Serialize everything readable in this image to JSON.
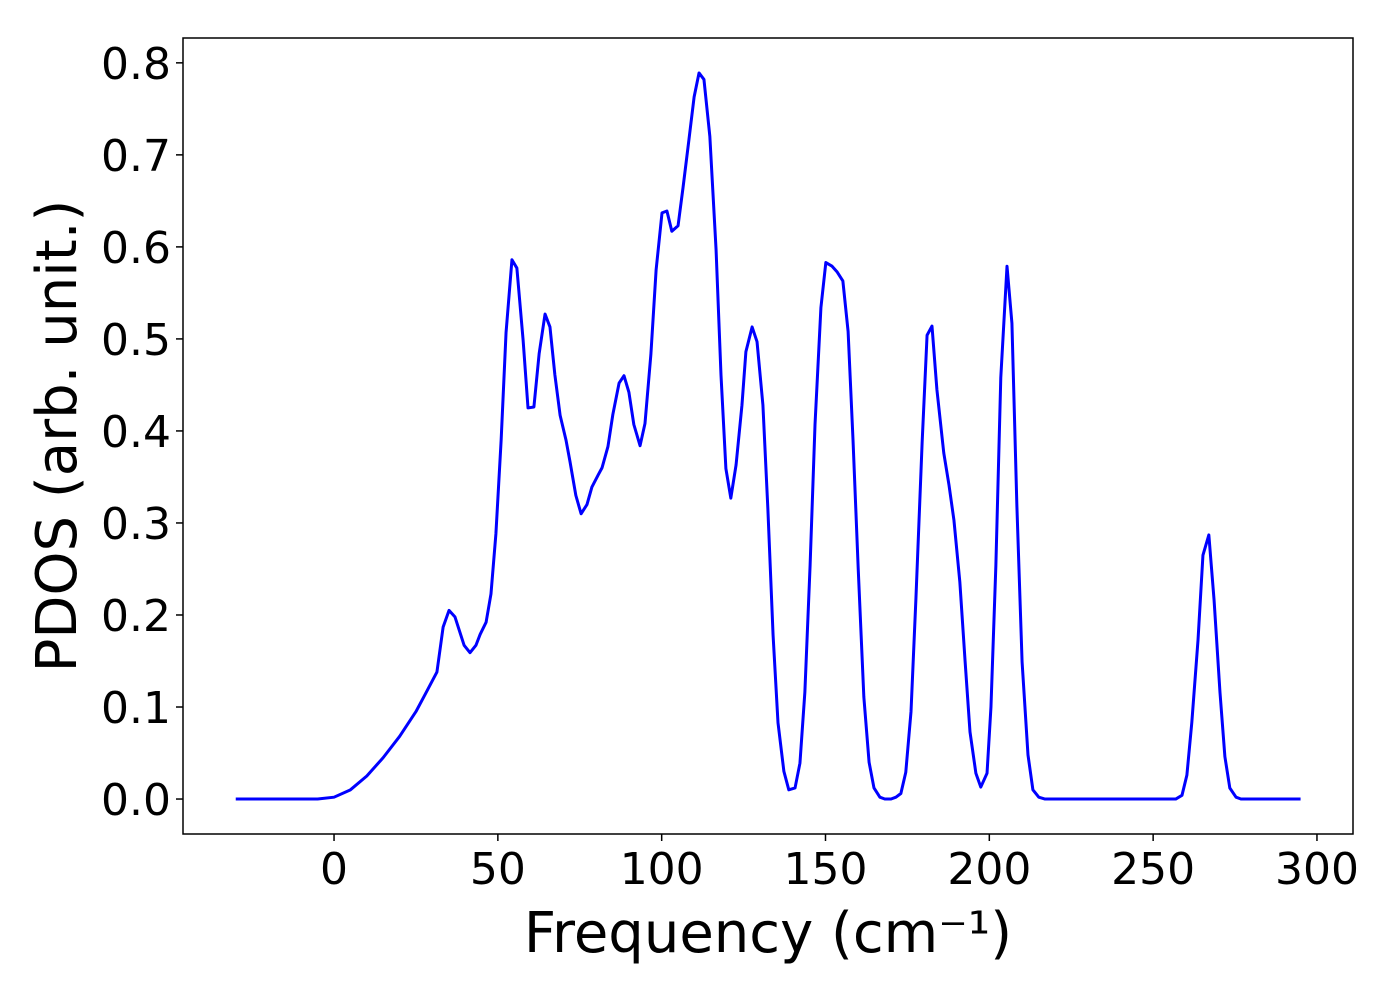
{
  "chart_data": {
    "type": "line",
    "xlabel": "Frequency (cm⁻¹)",
    "ylabel": "PDOS (arb. unit.)",
    "xlim": [
      -46.1,
      311.0
    ],
    "ylim": [
      -0.038,
      0.827
    ],
    "xticks": [
      0,
      50,
      100,
      150,
      200,
      250,
      300
    ],
    "yticks": [
      {
        "value": 0,
        "label": "0.0"
      },
      0.1,
      0.2,
      0.3,
      0.4,
      0.5,
      0.6,
      0.7,
      0.8
    ],
    "grid": false,
    "x": [
      -30,
      -20,
      -10,
      -5,
      0,
      5,
      10,
      15,
      20,
      25,
      28,
      31.4,
      33.3,
      35.1,
      36.9,
      39.7,
      41.5,
      43.3,
      44.6,
      46.4,
      47.9,
      49.4,
      51,
      52.5,
      54.3,
      55.8,
      57.7,
      59.2,
      61,
      62.6,
      64.4,
      65.9,
      67.4,
      69,
      70.8,
      72,
      73.8,
      75.4,
      77.2,
      78.7,
      80.6,
      81.8,
      83.6,
      85.1,
      87,
      88.5,
      90,
      91.5,
      93.4,
      94.9,
      96.7,
      98.3,
      100.1,
      101.6,
      103.1,
      105,
      106.5,
      108.3,
      109.9,
      111.4,
      112.9,
      114.7,
      116.6,
      118.1,
      119.6,
      121.1,
      122.7,
      124.5,
      125.7,
      127.6,
      129.1,
      130.9,
      132.4,
      134,
      135.5,
      137.3,
      138.8,
      140.7,
      142.2,
      143.7,
      145.3,
      146.8,
      148.6,
      150.1,
      152,
      153.5,
      155.3,
      156.9,
      158.4,
      160,
      161.7,
      163.3,
      164.8,
      166.6,
      168.1,
      170,
      171.5,
      173,
      174.5,
      176.1,
      177.6,
      179.5,
      181,
      182.5,
      184,
      186.1,
      187.7,
      189.2,
      191,
      192.6,
      194.1,
      195.9,
      197.4,
      199.3,
      200.5,
      202,
      203.5,
      205.4,
      206.9,
      208.4,
      210,
      211.8,
      213.3,
      215.1,
      217,
      256.9,
      258.8,
      260.3,
      261.8,
      263.7,
      265.2,
      267,
      268.6,
      270.4,
      271.9,
      273.4,
      275.3,
      276.8,
      295
    ],
    "series": [
      {
        "name": "PDOS",
        "color": "#0000ff",
        "values": [
          0,
          0,
          0,
          0,
          0.002,
          0.01,
          0.025,
          0.045,
          0.068,
          0.095,
          0.115,
          0.138,
          0.187,
          0.205,
          0.198,
          0.167,
          0.159,
          0.167,
          0.179,
          0.192,
          0.223,
          0.288,
          0.39,
          0.507,
          0.586,
          0.577,
          0.499,
          0.425,
          0.426,
          0.484,
          0.527,
          0.513,
          0.461,
          0.417,
          0.39,
          0.367,
          0.33,
          0.31,
          0.32,
          0.339,
          0.352,
          0.36,
          0.383,
          0.418,
          0.452,
          0.46,
          0.442,
          0.407,
          0.384,
          0.408,
          0.483,
          0.575,
          0.637,
          0.639,
          0.617,
          0.623,
          0.664,
          0.716,
          0.763,
          0.789,
          0.782,
          0.72,
          0.597,
          0.461,
          0.359,
          0.327,
          0.363,
          0.428,
          0.486,
          0.513,
          0.497,
          0.428,
          0.316,
          0.178,
          0.083,
          0.03,
          0.01,
          0.012,
          0.039,
          0.116,
          0.254,
          0.407,
          0.534,
          0.583,
          0.579,
          0.573,
          0.563,
          0.508,
          0.39,
          0.249,
          0.111,
          0.04,
          0.012,
          0.002,
          0,
          0,
          0.002,
          0.006,
          0.029,
          0.095,
          0.218,
          0.388,
          0.504,
          0.514,
          0.445,
          0.376,
          0.341,
          0.303,
          0.236,
          0.15,
          0.073,
          0.028,
          0.013,
          0.028,
          0.1,
          0.254,
          0.458,
          0.579,
          0.517,
          0.32,
          0.149,
          0.048,
          0.01,
          0.002,
          0,
          0,
          0.004,
          0.026,
          0.083,
          0.173,
          0.265,
          0.287,
          0.216,
          0.116,
          0.046,
          0.012,
          0.002,
          0,
          0
        ]
      }
    ]
  }
}
